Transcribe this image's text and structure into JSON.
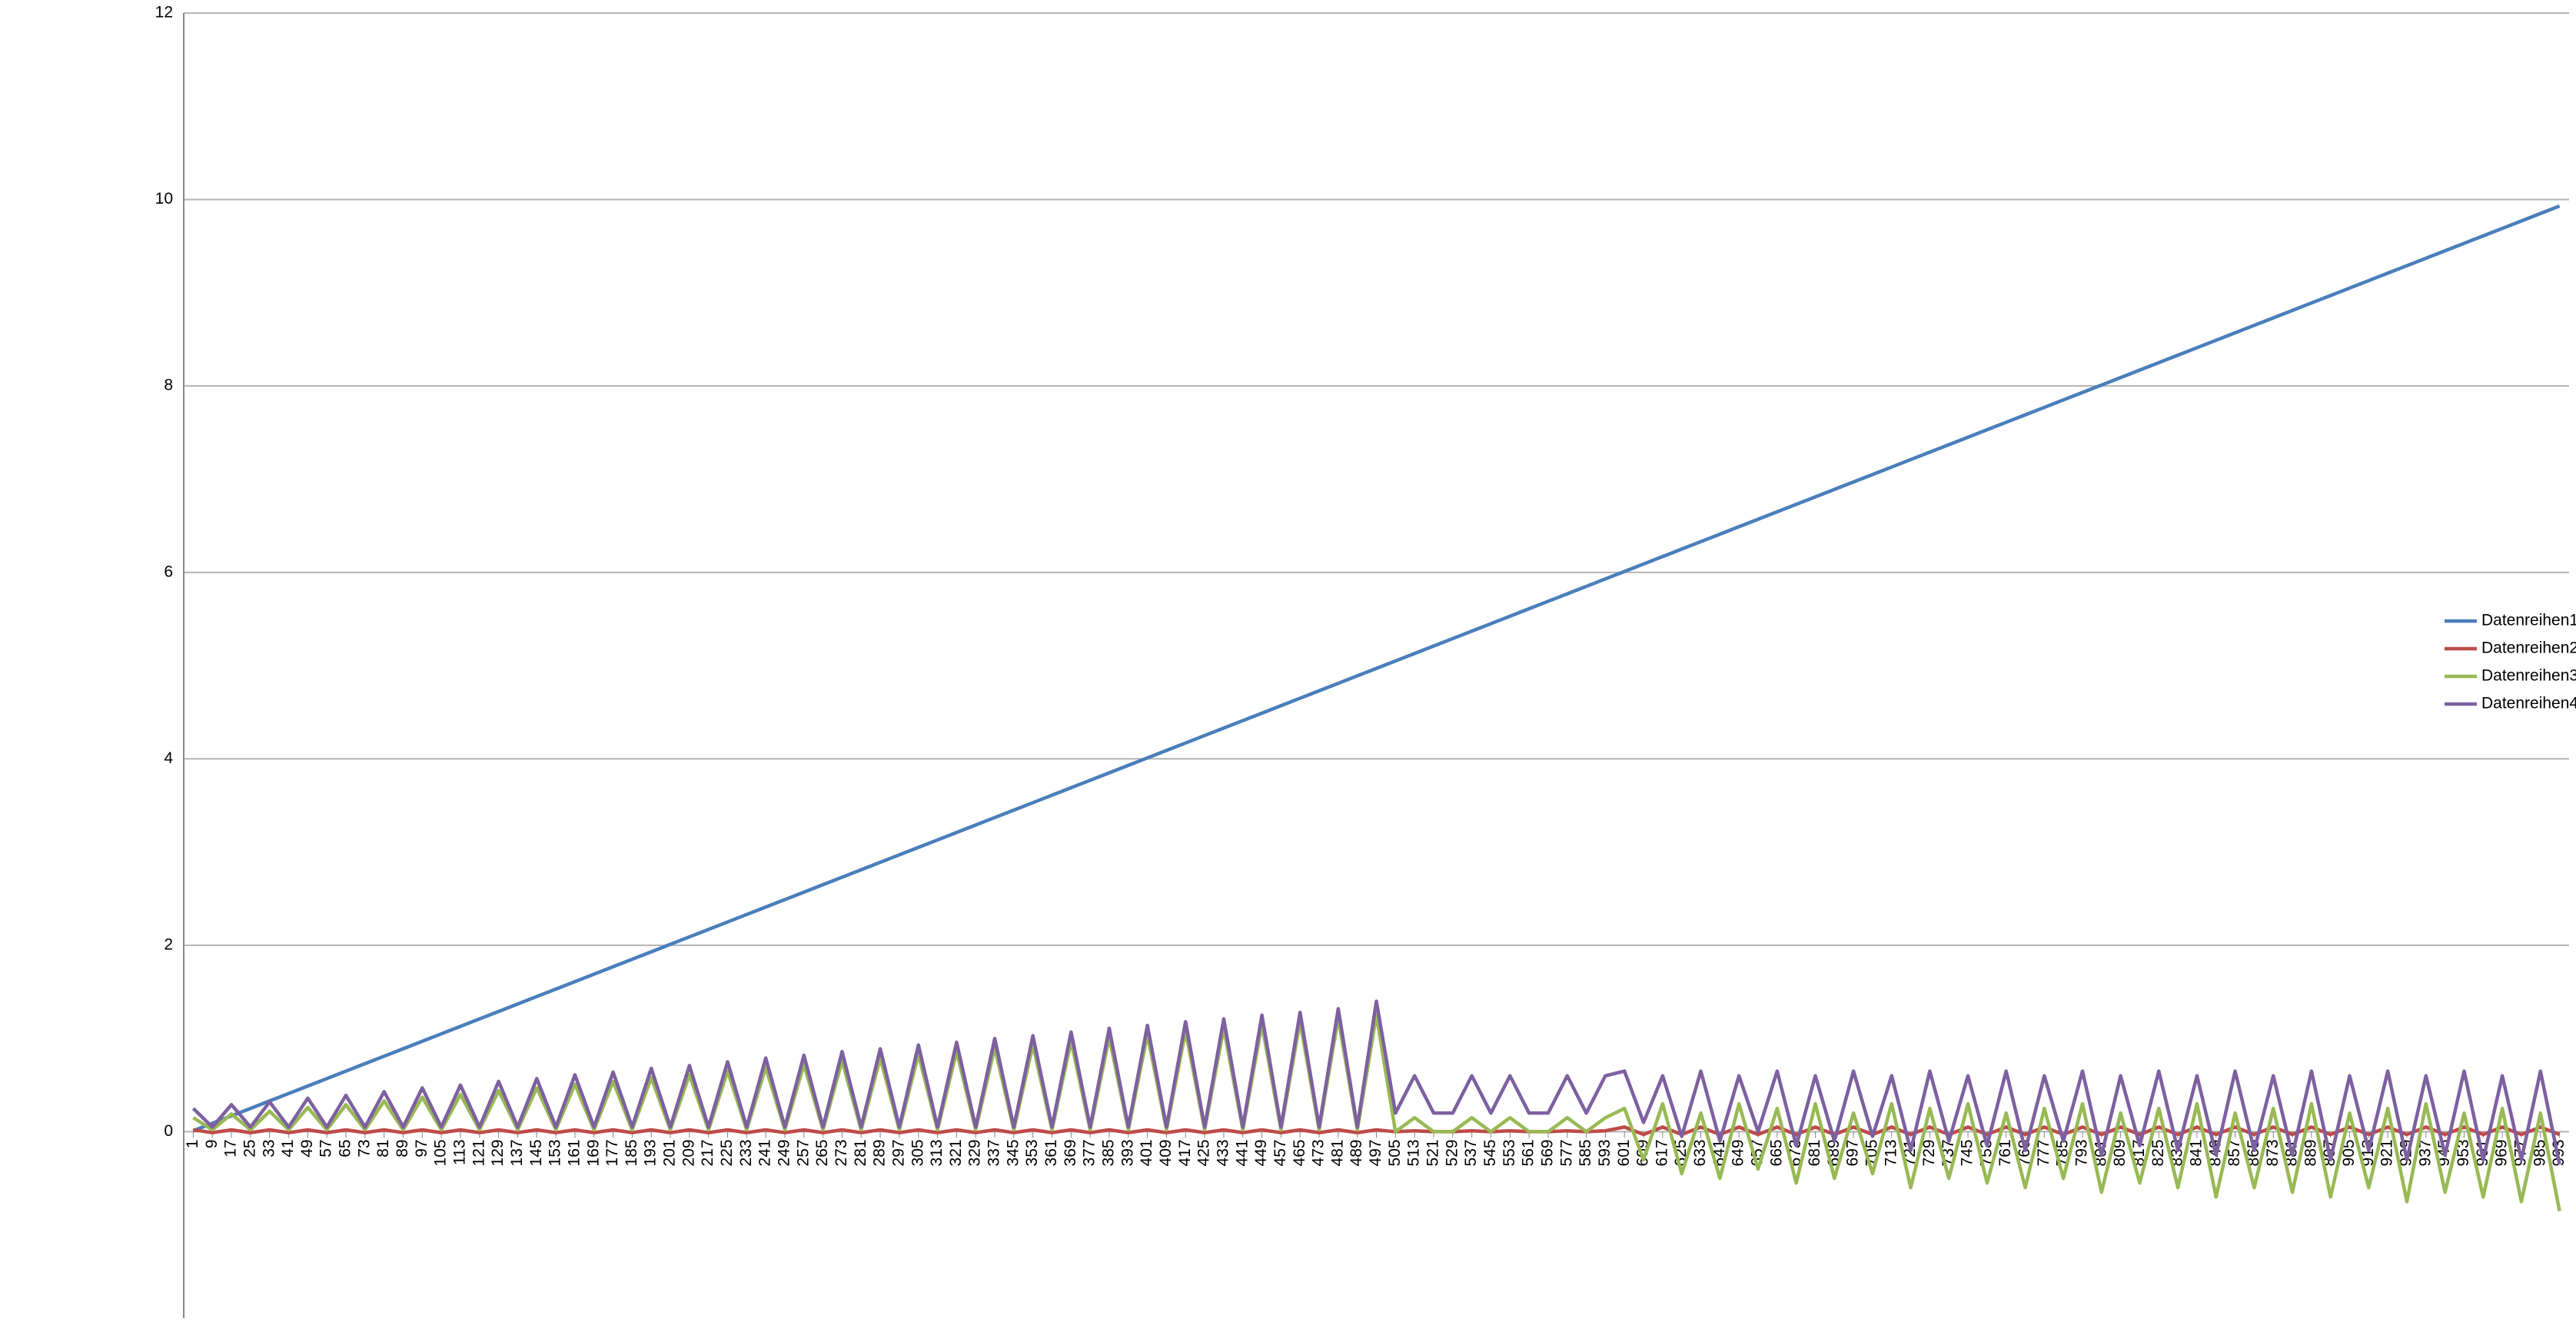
{
  "chart_data": {
    "type": "line",
    "categories": [
      1,
      9,
      17,
      25,
      33,
      41,
      49,
      57,
      65,
      73,
      81,
      89,
      97,
      105,
      113,
      121,
      129,
      137,
      145,
      153,
      161,
      169,
      177,
      185,
      193,
      201,
      209,
      217,
      225,
      233,
      241,
      249,
      257,
      265,
      273,
      281,
      289,
      297,
      305,
      313,
      321,
      329,
      337,
      345,
      353,
      361,
      369,
      377,
      385,
      393,
      401,
      409,
      417,
      425,
      433,
      441,
      449,
      457,
      465,
      473,
      481,
      489,
      497,
      505,
      513,
      521,
      529,
      537,
      545,
      553,
      561,
      569,
      577,
      585,
      593,
      601,
      609,
      617,
      625,
      633,
      641,
      649,
      657,
      665,
      673,
      681,
      689,
      697,
      705,
      713,
      721,
      729,
      737,
      745,
      753,
      761,
      769,
      777,
      785,
      793,
      801,
      809,
      817,
      825,
      833,
      841,
      849,
      857,
      865,
      873,
      881,
      889,
      897,
      905,
      913,
      921,
      929,
      937,
      945,
      953,
      961,
      969,
      977,
      985,
      993
    ],
    "series": [
      {
        "name": "Datenreihen1",
        "color": "#4a7ebb",
        "values": [
          0.01,
          0.09,
          0.17,
          0.25,
          0.33,
          0.41,
          0.49,
          0.57,
          0.65,
          0.73,
          0.81,
          0.89,
          0.97,
          1.05,
          1.13,
          1.21,
          1.29,
          1.37,
          1.45,
          1.53,
          1.61,
          1.69,
          1.77,
          1.85,
          1.93,
          2.01,
          2.09,
          2.17,
          2.25,
          2.33,
          2.41,
          2.49,
          2.57,
          2.65,
          2.73,
          2.81,
          2.89,
          2.97,
          3.05,
          3.13,
          3.21,
          3.29,
          3.37,
          3.45,
          3.53,
          3.61,
          3.69,
          3.77,
          3.85,
          3.93,
          4.01,
          4.09,
          4.17,
          4.25,
          4.33,
          4.41,
          4.49,
          4.57,
          4.65,
          4.73,
          4.81,
          4.89,
          4.97,
          5.05,
          5.13,
          5.21,
          5.29,
          5.37,
          5.45,
          5.53,
          5.61,
          5.69,
          5.77,
          5.85,
          5.93,
          6.01,
          6.09,
          6.17,
          6.25,
          6.33,
          6.41,
          6.49,
          6.57,
          6.65,
          6.73,
          6.81,
          6.89,
          6.97,
          7.05,
          7.13,
          7.21,
          7.29,
          7.37,
          7.45,
          7.53,
          7.61,
          7.69,
          7.77,
          7.85,
          7.93,
          8.01,
          8.09,
          8.17,
          8.25,
          8.33,
          8.41,
          8.49,
          8.57,
          8.65,
          8.73,
          8.81,
          8.89,
          8.97,
          9.05,
          9.13,
          9.21,
          9.29,
          9.37,
          9.45,
          9.53,
          9.61,
          9.69,
          9.77,
          9.85,
          9.93
        ]
      },
      {
        "name": "Datenreihen2",
        "color": "#be4b48",
        "values": [
          0.02,
          -0.01,
          0.02,
          -0.01,
          0.02,
          -0.01,
          0.02,
          -0.01,
          0.02,
          -0.01,
          0.02,
          -0.01,
          0.02,
          -0.01,
          0.02,
          -0.01,
          0.02,
          -0.01,
          0.02,
          -0.01,
          0.02,
          -0.01,
          0.02,
          -0.01,
          0.02,
          -0.01,
          0.02,
          -0.01,
          0.02,
          -0.01,
          0.02,
          -0.01,
          0.02,
          -0.01,
          0.02,
          -0.01,
          0.02,
          -0.01,
          0.02,
          -0.01,
          0.02,
          -0.01,
          0.02,
          -0.01,
          0.02,
          -0.01,
          0.02,
          -0.01,
          0.02,
          -0.01,
          0.02,
          -0.01,
          0.02,
          -0.01,
          0.02,
          -0.01,
          0.02,
          -0.01,
          0.02,
          -0.01,
          0.02,
          -0.01,
          0.02,
          0,
          0.01,
          0,
          0,
          0.01,
          0,
          0.01,
          0,
          0,
          0.01,
          0,
          0.01,
          0.05,
          -0.03,
          0.05,
          -0.03,
          0.05,
          -0.03,
          0.05,
          -0.03,
          0.05,
          -0.03,
          0.05,
          -0.03,
          0.05,
          -0.03,
          0.05,
          -0.03,
          0.05,
          -0.03,
          0.05,
          -0.03,
          0.05,
          -0.03,
          0.05,
          -0.03,
          0.05,
          -0.03,
          0.05,
          -0.03,
          0.05,
          -0.03,
          0.05,
          -0.03,
          0.05,
          -0.03,
          0.05,
          -0.03,
          0.05,
          -0.03,
          0.05,
          -0.03,
          0.05,
          -0.03,
          0.05,
          -0.03,
          0.05,
          -0.03,
          0.05,
          -0.03,
          0.05,
          -0.03
        ]
      },
      {
        "name": "Datenreihen3",
        "color": "#98b954",
        "values": [
          0.15,
          0.02,
          0.19,
          0.02,
          0.22,
          0.02,
          0.26,
          0.02,
          0.29,
          0.02,
          0.33,
          0.02,
          0.37,
          0.02,
          0.4,
          0.02,
          0.44,
          0.02,
          0.47,
          0.02,
          0.51,
          0.02,
          0.54,
          0.02,
          0.58,
          0.02,
          0.61,
          0.02,
          0.65,
          0.02,
          0.69,
          0.02,
          0.72,
          0.02,
          0.76,
          0.02,
          0.79,
          0.02,
          0.83,
          0.02,
          0.86,
          0.02,
          0.9,
          0.02,
          0.93,
          0.02,
          0.97,
          0.02,
          1.01,
          0.02,
          1.04,
          0.02,
          1.08,
          0.02,
          1.11,
          0.02,
          1.15,
          0.02,
          1.18,
          0.02,
          1.22,
          0.02,
          1.25,
          0,
          0.15,
          0,
          0,
          0.15,
          0,
          0.15,
          0,
          0,
          0.15,
          0,
          0.15,
          0.25,
          -0.3,
          0.3,
          -0.45,
          0.2,
          -0.5,
          0.3,
          -0.4,
          0.25,
          -0.55,
          0.3,
          -0.5,
          0.2,
          -0.45,
          0.3,
          -0.6,
          0.25,
          -0.5,
          0.3,
          -0.55,
          0.2,
          -0.6,
          0.25,
          -0.5,
          0.3,
          -0.65,
          0.2,
          -0.55,
          0.25,
          -0.6,
          0.3,
          -0.7,
          0.2,
          -0.6,
          0.25,
          -0.65,
          0.3,
          -0.7,
          0.2,
          -0.6,
          0.25,
          -0.75,
          0.3,
          -0.65,
          0.2,
          -0.7,
          0.25,
          -0.75,
          0.2,
          -0.85
        ]
      },
      {
        "name": "Datenreihen4",
        "color": "#7d60a0",
        "values": [
          0.25,
          0.05,
          0.29,
          0.05,
          0.32,
          0.05,
          0.36,
          0.05,
          0.39,
          0.05,
          0.43,
          0.05,
          0.47,
          0.05,
          0.5,
          0.05,
          0.54,
          0.05,
          0.57,
          0.05,
          0.61,
          0.05,
          0.64,
          0.05,
          0.68,
          0.05,
          0.71,
          0.05,
          0.75,
          0.05,
          0.79,
          0.05,
          0.82,
          0.05,
          0.86,
          0.05,
          0.89,
          0.05,
          0.93,
          0.05,
          0.96,
          0.05,
          1,
          0.05,
          1.03,
          0.05,
          1.07,
          0.05,
          1.11,
          0.05,
          1.14,
          0.05,
          1.18,
          0.05,
          1.21,
          0.05,
          1.25,
          0.05,
          1.28,
          0.05,
          1.32,
          0.05,
          1.4,
          0.2,
          0.6,
          0.2,
          0.2,
          0.6,
          0.2,
          0.6,
          0.2,
          0.2,
          0.6,
          0.2,
          0.6,
          0.65,
          0.1,
          0.6,
          -0.05,
          0.65,
          -0.1,
          0.6,
          0,
          0.65,
          -0.15,
          0.6,
          -0.1,
          0.65,
          -0.05,
          0.6,
          -0.2,
          0.65,
          -0.1,
          0.6,
          -0.15,
          0.65,
          -0.2,
          0.6,
          -0.1,
          0.65,
          -0.25,
          0.6,
          -0.15,
          0.65,
          -0.2,
          0.6,
          -0.25,
          0.65,
          -0.2,
          0.6,
          -0.25,
          0.65,
          -0.3,
          0.6,
          -0.2,
          0.65,
          -0.3,
          0.6,
          -0.25,
          0.65,
          -0.3,
          0.6,
          -0.3,
          0.65,
          -0.35
        ]
      }
    ],
    "ylim": [
      -2,
      12
    ],
    "yticks": [
      0,
      2,
      4,
      6,
      8,
      10,
      12
    ],
    "grid": true,
    "legend": "right"
  }
}
